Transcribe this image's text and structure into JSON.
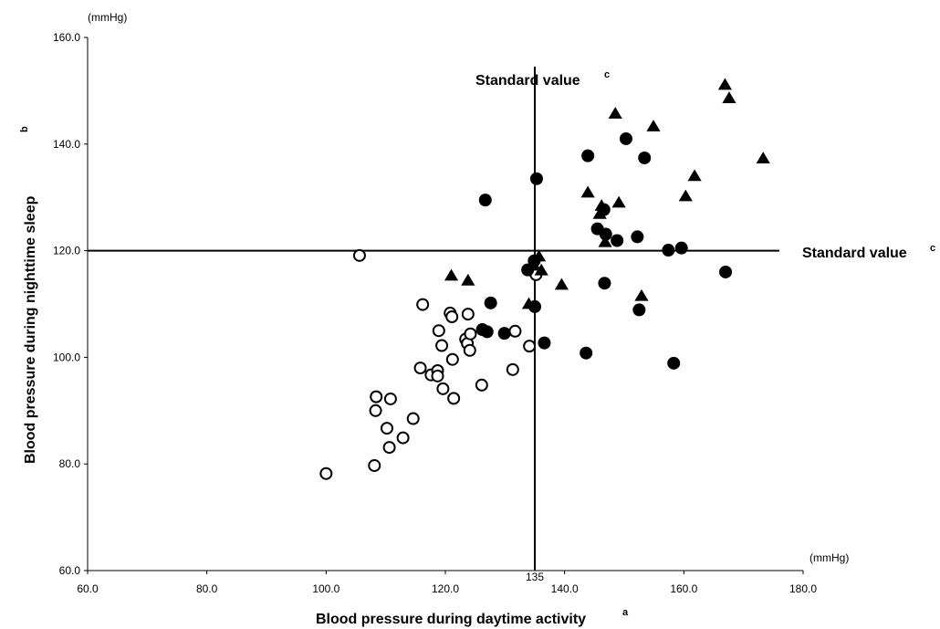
{
  "chart_data": {
    "type": "scatter",
    "xlabel": "Blood pressure during daytime activity",
    "xlabel_superscript": "a",
    "ylabel": "Blood pressure during nighttime sleep",
    "ylabel_superscript": "b",
    "x_unit": "(mmHg)",
    "y_unit": "(mmHg)",
    "xlim": [
      60,
      180
    ],
    "ylim": [
      60,
      160
    ],
    "x_ticks": [
      "60.0",
      "80.0",
      "100.0",
      "120.0",
      "140.0",
      "160.0",
      "180.0"
    ],
    "y_ticks": [
      "60.0",
      "80.0",
      "100.0",
      "120.0",
      "140.0",
      "160.0"
    ],
    "grid": false,
    "reference_lines": {
      "vertical": {
        "x": 135,
        "label": "Standard value",
        "superscript": "c",
        "tick_label": "135"
      },
      "horizontal": {
        "y": 120,
        "label": "Standard value",
        "superscript": "c"
      }
    },
    "series": [
      {
        "marker": "open-circle",
        "points": [
          [
            100,
            78.2
          ],
          [
            105.6,
            119.1
          ],
          [
            108.1,
            79.7
          ],
          [
            108.3,
            90
          ],
          [
            108.4,
            92.6
          ],
          [
            110.2,
            86.7
          ],
          [
            110.6,
            83.1
          ],
          [
            110.8,
            92.2
          ],
          [
            112.9,
            84.9
          ],
          [
            114.6,
            88.5
          ],
          [
            115.8,
            98
          ],
          [
            116.2,
            109.9
          ],
          [
            117.6,
            96.7
          ],
          [
            118.7,
            97.5
          ],
          [
            118.7,
            96.5
          ],
          [
            118.9,
            105
          ],
          [
            119.4,
            102.2
          ],
          [
            119.6,
            94.1
          ],
          [
            120.8,
            108.3
          ],
          [
            121.1,
            107.6
          ],
          [
            121.2,
            99.6
          ],
          [
            121.4,
            92.3
          ],
          [
            123.4,
            103.4
          ],
          [
            123.7,
            102.6
          ],
          [
            123.8,
            108.1
          ],
          [
            124.1,
            101.3
          ],
          [
            124.2,
            104.4
          ],
          [
            126.1,
            94.8
          ],
          [
            131.3,
            97.7
          ],
          [
            131.7,
            104.9
          ],
          [
            134.1,
            102.1
          ],
          [
            135.2,
            115.5
          ]
        ]
      },
      {
        "marker": "filled-circle",
        "points": [
          [
            126.2,
            105.2
          ],
          [
            126.7,
            129.5
          ],
          [
            127.0,
            104.8
          ],
          [
            127.6,
            110.2
          ],
          [
            129.9,
            104.5
          ],
          [
            133.8,
            116.4
          ],
          [
            134.9,
            118.1
          ],
          [
            135.0,
            109.5
          ],
          [
            135.3,
            133.5
          ],
          [
            136.6,
            102.7
          ],
          [
            143.6,
            100.8
          ],
          [
            143.9,
            137.8
          ],
          [
            145.5,
            124.1
          ],
          [
            146.6,
            127.7
          ],
          [
            146.7,
            113.9
          ],
          [
            146.9,
            123.1
          ],
          [
            148.8,
            121.9
          ],
          [
            150.3,
            141
          ],
          [
            152.2,
            122.6
          ],
          [
            152.5,
            108.9
          ],
          [
            153.4,
            137.4
          ],
          [
            157.4,
            120.1
          ],
          [
            158.3,
            98.9
          ],
          [
            159.6,
            120.5
          ],
          [
            167.0,
            116
          ]
        ]
      },
      {
        "marker": "filled-triangle",
        "points": [
          [
            121.0,
            115.2
          ],
          [
            123.8,
            114.3
          ],
          [
            134.0,
            109.9
          ],
          [
            134.9,
            117.1
          ],
          [
            135.7,
            118.8
          ],
          [
            136.1,
            116.2
          ],
          [
            139.5,
            113.5
          ],
          [
            143.9,
            130.8
          ],
          [
            145.9,
            126.8
          ],
          [
            146.2,
            128.3
          ],
          [
            146.8,
            121.5
          ],
          [
            148.5,
            145.6
          ],
          [
            149.1,
            128.9
          ],
          [
            154.9,
            143.2
          ],
          [
            152.9,
            111.4
          ],
          [
            160.3,
            130.1
          ],
          [
            161.8,
            133.9
          ],
          [
            166.9,
            151
          ],
          [
            167.6,
            148.5
          ],
          [
            173.3,
            137.2
          ]
        ]
      }
    ]
  }
}
